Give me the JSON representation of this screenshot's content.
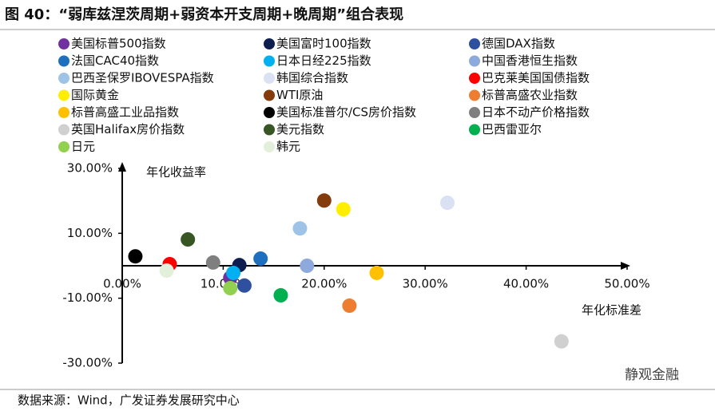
{
  "chart_data": {
    "type": "scatter",
    "title": "图 40：“弱库兹涅茨周期+弱资本开支周期+晚周期”组合表现",
    "ylabel": "年化收益率",
    "xlabel": "年化标准差",
    "source": "数据来源：Wind，广发证券发展研究中心",
    "watermark": "静观金融",
    "xlim": [
      0,
      50
    ],
    "ylim": [
      -30,
      30
    ],
    "xticks": [
      {
        "value": 0,
        "label": "0.00%"
      },
      {
        "value": 10,
        "label": "10.00%"
      },
      {
        "value": 20,
        "label": "20.00%"
      },
      {
        "value": 30,
        "label": "30.00%"
      },
      {
        "value": 40,
        "label": "40.00%"
      },
      {
        "value": 50,
        "label": "50.00%"
      }
    ],
    "yticks": [
      {
        "value": 30,
        "label": "30.00%"
      },
      {
        "value": 10,
        "label": "10.00%"
      },
      {
        "value": -10,
        "label": "-10.00%"
      },
      {
        "value": -30,
        "label": "-30.00%"
      }
    ],
    "series": [
      {
        "name": "美国标普500指数",
        "color": "#7030a0",
        "x": [
          10.7
        ],
        "values": [
          -3.7
        ]
      },
      {
        "name": "美国富时100指数",
        "color": "#0d1f4f",
        "x": [
          11.6
        ],
        "values": [
          0.2
        ]
      },
      {
        "name": "德国DAX指数",
        "color": "#2f4f9f",
        "x": [
          12.1
        ],
        "values": [
          -6.1
        ]
      },
      {
        "name": "法国CAC40指数",
        "color": "#1f6fbf",
        "x": [
          13.7
        ],
        "values": [
          2.2
        ]
      },
      {
        "name": "日本日经225指数",
        "color": "#00b0f0",
        "x": [
          11.0
        ],
        "values": [
          -2.2
        ]
      },
      {
        "name": "中国香港恒生指数",
        "color": "#8ea9db",
        "x": [
          18.3
        ],
        "values": [
          0.0
        ]
      },
      {
        "name": "巴西圣保罗IBOVESPA指数",
        "color": "#9dc3e6",
        "x": [
          17.6
        ],
        "values": [
          11.5
        ]
      },
      {
        "name": "韩国综合指数",
        "color": "#d9e1f2",
        "x": [
          32.2
        ],
        "values": [
          19.4
        ]
      },
      {
        "name": "巴克莱美国国债指数",
        "color": "#ff0000",
        "x": [
          4.7
        ],
        "values": [
          0.5
        ]
      },
      {
        "name": "国际黄金",
        "color": "#ffee00",
        "x": [
          21.9
        ],
        "values": [
          17.4
        ]
      },
      {
        "name": "WTI原油",
        "color": "#843c0c",
        "x": [
          20.0
        ],
        "values": [
          20.1
        ]
      },
      {
        "name": "标普高盛农业指数",
        "color": "#ed7d31",
        "x": [
          22.5
        ],
        "values": [
          -12.3
        ]
      },
      {
        "name": "标普高盛工业品指数",
        "color": "#ffc000",
        "x": [
          25.2
        ],
        "values": [
          -2.2
        ]
      },
      {
        "name": "美国标准普尔/CS房价指数",
        "color": "#000000",
        "x": [
          1.3
        ],
        "values": [
          2.9
        ]
      },
      {
        "name": "日本不动产价格指数",
        "color": "#7f7f7f",
        "x": [
          9.0
        ],
        "values": [
          1.0
        ]
      },
      {
        "name": "英国Halifax房价指数",
        "color": "#d0d0d0",
        "x": [
          43.5
        ],
        "values": [
          -23.3
        ]
      },
      {
        "name": "美元指数",
        "color": "#375623",
        "x": [
          6.5
        ],
        "values": [
          8.1
        ]
      },
      {
        "name": "巴西雷亚尔",
        "color": "#00b050",
        "x": [
          15.7
        ],
        "values": [
          -9.1
        ]
      },
      {
        "name": "日元",
        "color": "#92d050",
        "x": [
          10.7
        ],
        "values": [
          -6.9
        ]
      },
      {
        "name": "韩元",
        "color": "#e2efda",
        "x": [
          4.4
        ],
        "values": [
          -1.5
        ]
      }
    ]
  }
}
